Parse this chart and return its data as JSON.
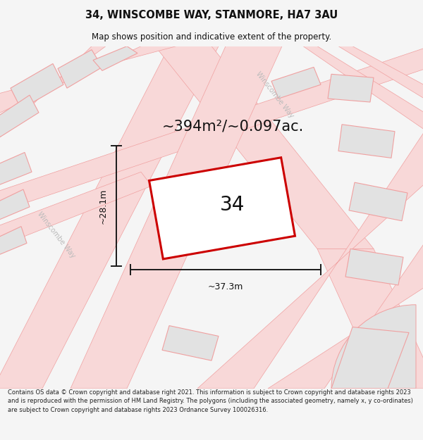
{
  "title": "34, WINSCOMBE WAY, STANMORE, HA7 3AU",
  "subtitle": "Map shows position and indicative extent of the property.",
  "area_text": "~394m²/~0.097ac.",
  "label_34": "34",
  "dim_width": "~37.3m",
  "dim_height": "~28.1m",
  "footer_text": "Contains OS data © Crown copyright and database right 2021. This information is subject to Crown copyright and database rights 2023 and is reproduced with the permission of HM Land Registry. The polygons (including the associated geometry, namely x, y co-ordinates) are subject to Crown copyright and database rights 2023 Ordnance Survey 100026316.",
  "bg_color": "#f5f5f5",
  "map_bg": "#ffffff",
  "road_fill": "#f8d8d8",
  "block_fill": "#e2e2e2",
  "road_line": "#f0a0a0",
  "property_line": "#cc0000",
  "property_fill": "#ffffff",
  "dim_line_color": "#1a1a1a",
  "street_label_color": "#bbbbbb",
  "title_color": "#111111",
  "text_color": "#111111",
  "footer_color": "#222222",
  "title_fontsize": 10.5,
  "subtitle_fontsize": 8.5,
  "area_fontsize": 15,
  "label_fontsize": 20,
  "dim_fontsize": 9,
  "footer_fontsize": 6.0,
  "street_fontsize": 7
}
